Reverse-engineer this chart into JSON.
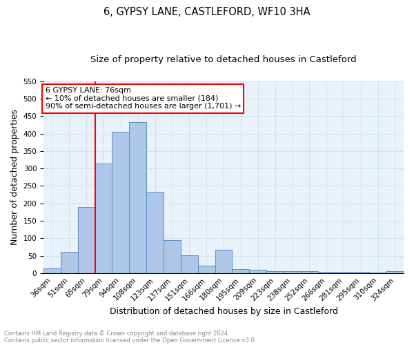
{
  "title": "6, GYPSY LANE, CASTLEFORD, WF10 3HA",
  "subtitle": "Size of property relative to detached houses in Castleford",
  "xlabel": "Distribution of detached houses by size in Castleford",
  "ylabel": "Number of detached properties",
  "footnote1": "Contains HM Land Registry data © Crown copyright and database right 2024.",
  "footnote2": "Contains public sector information licensed under the Open Government Licence v3.0.",
  "categories": [
    "36sqm",
    "51sqm",
    "65sqm",
    "79sqm",
    "94sqm",
    "108sqm",
    "123sqm",
    "137sqm",
    "151sqm",
    "166sqm",
    "180sqm",
    "195sqm",
    "209sqm",
    "223sqm",
    "238sqm",
    "252sqm",
    "266sqm",
    "281sqm",
    "295sqm",
    "310sqm",
    "324sqm"
  ],
  "values": [
    13,
    61,
    190,
    315,
    406,
    432,
    234,
    94,
    52,
    21,
    66,
    11,
    10,
    6,
    5,
    5,
    4,
    4,
    3,
    1,
    5
  ],
  "bar_color": "#aec6e8",
  "bar_edge_color": "#5a8fc2",
  "vline_index": 3,
  "vline_color": "red",
  "annotation_text": "6 GYPSY LANE: 76sqm\n← 10% of detached houses are smaller (184)\n90% of semi-detached houses are larger (1,701) →",
  "annotation_box_color": "white",
  "annotation_box_edge_color": "red",
  "ylim": [
    0,
    550
  ],
  "yticks": [
    0,
    50,
    100,
    150,
    200,
    250,
    300,
    350,
    400,
    450,
    500,
    550
  ],
  "grid_color": "#ccdde8",
  "background_color": "#e8f2fa",
  "title_fontsize": 10.5,
  "subtitle_fontsize": 9.5,
  "xlabel_fontsize": 9,
  "ylabel_fontsize": 9,
  "tick_fontsize": 7.5,
  "annotation_fontsize": 8,
  "footnote_fontsize": 6
}
